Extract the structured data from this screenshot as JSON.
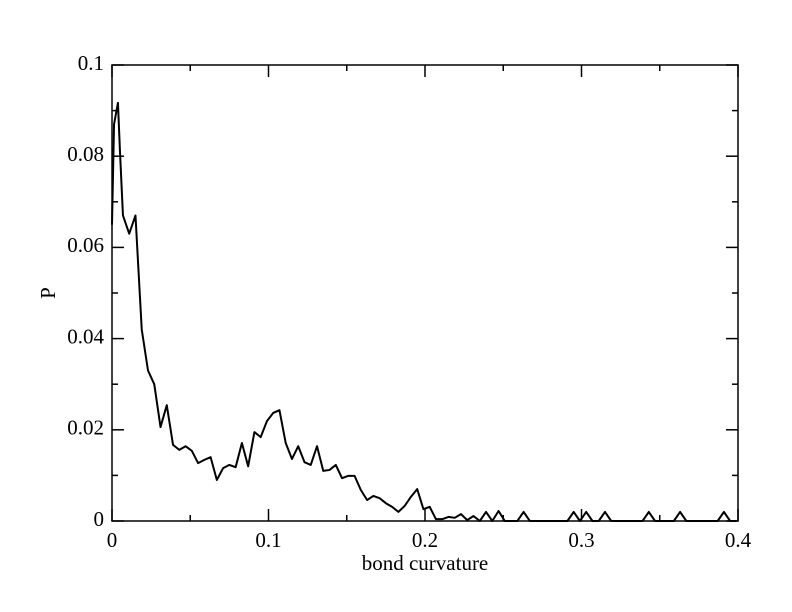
{
  "chart_data": {
    "type": "line",
    "x_label": "bond curvature",
    "y_label": "P",
    "xlim": [
      0,
      0.4
    ],
    "ylim": [
      0,
      0.1
    ],
    "xticks": [
      0,
      0.1,
      0.2,
      0.3,
      0.4
    ],
    "yticks": [
      0,
      0.02,
      0.04,
      0.06,
      0.08,
      0.1
    ],
    "xminorticks": [
      0.05,
      0.15,
      0.25,
      0.35
    ],
    "yminorticks": [
      0.01,
      0.03,
      0.05,
      0.07,
      0.09
    ],
    "series": [
      {
        "color": "#000000",
        "x": [
          0.0,
          0.0013,
          0.0038,
          0.0051,
          0.007,
          0.011,
          0.015,
          0.019,
          0.023,
          0.027,
          0.031,
          0.035,
          0.039,
          0.043,
          0.047,
          0.051,
          0.055,
          0.059,
          0.063,
          0.067,
          0.071,
          0.075,
          0.079,
          0.083,
          0.087,
          0.091,
          0.095,
          0.099,
          0.103,
          0.107,
          0.111,
          0.115,
          0.119,
          0.123,
          0.127,
          0.131,
          0.135,
          0.139,
          0.143,
          0.147,
          0.151,
          0.155,
          0.159,
          0.163,
          0.167,
          0.171,
          0.175,
          0.179,
          0.183,
          0.187,
          0.191,
          0.195,
          0.199,
          0.203,
          0.207,
          0.211,
          0.215,
          0.219,
          0.223,
          0.227,
          0.231,
          0.235,
          0.239,
          0.243,
          0.247,
          0.251,
          0.255,
          0.259,
          0.263,
          0.267,
          0.271,
          0.275,
          0.279,
          0.283,
          0.287,
          0.291,
          0.295,
          0.299,
          0.303,
          0.307,
          0.311,
          0.315,
          0.319,
          0.323,
          0.327,
          0.331,
          0.335,
          0.339,
          0.343,
          0.347,
          0.351,
          0.355,
          0.359,
          0.363,
          0.367,
          0.371,
          0.375,
          0.379,
          0.383,
          0.387,
          0.391,
          0.395,
          0.399
        ],
        "values": [
          0.065,
          0.087,
          0.0917,
          0.081,
          0.067,
          0.063,
          0.067,
          0.042,
          0.033,
          0.03,
          0.0206,
          0.0254,
          0.0167,
          0.0156,
          0.0164,
          0.0154,
          0.0127,
          0.0134,
          0.014,
          0.009,
          0.0116,
          0.0123,
          0.0118,
          0.0171,
          0.012,
          0.0195,
          0.0184,
          0.0219,
          0.0237,
          0.0243,
          0.0171,
          0.0136,
          0.0164,
          0.0129,
          0.0123,
          0.0164,
          0.011,
          0.0112,
          0.0123,
          0.0094,
          0.0099,
          0.0099,
          0.0068,
          0.0046,
          0.0055,
          0.005,
          0.0039,
          0.0031,
          0.002,
          0.0033,
          0.0053,
          0.007,
          0.0026,
          0.0031,
          0.0004,
          0.0004,
          0.0009,
          0.0007,
          0.0015,
          0.0002,
          0.0011,
          0,
          0.002,
          0,
          0.0022,
          0,
          0,
          0,
          0.002,
          0,
          0,
          0,
          0,
          0,
          0,
          0,
          0.002,
          0,
          0.002,
          0,
          0,
          0.002,
          0,
          0,
          0,
          0,
          0,
          0,
          0.002,
          0,
          0,
          0,
          0,
          0.002,
          0,
          0,
          0,
          0,
          0,
          0,
          0.002,
          0,
          0
        ]
      }
    ]
  }
}
